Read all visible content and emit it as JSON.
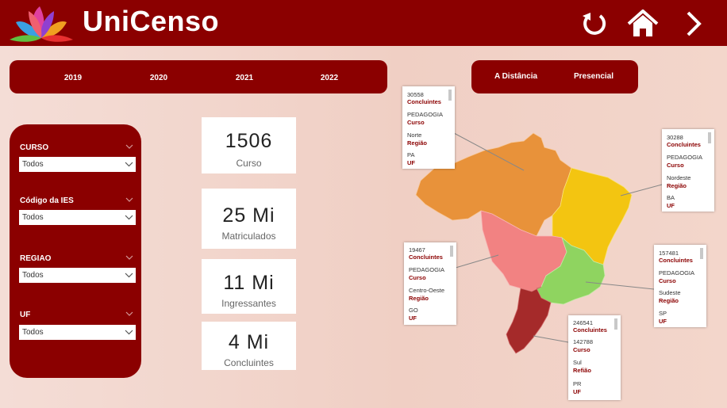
{
  "header": {
    "title": "UniCenso",
    "icons": [
      "refresh-icon",
      "home-icon",
      "chevron-right-icon"
    ],
    "bg_color": "#8b0000"
  },
  "years": [
    "2019",
    "2020",
    "2021",
    "2022"
  ],
  "modes": [
    "A Distância",
    "Presencial"
  ],
  "filters": [
    {
      "label": "CURSO",
      "value": "Todos"
    },
    {
      "label": "Código da IES",
      "value": "Todos"
    },
    {
      "label": "REGIAO",
      "value": "Todos"
    },
    {
      "label": "UF",
      "value": "Todos"
    }
  ],
  "kpis": [
    {
      "value": "1506",
      "label": "Curso"
    },
    {
      "value": "25 Mi",
      "label": "Matriculados"
    },
    {
      "value": "11 Mi",
      "label": "Ingressantes"
    },
    {
      "value": "4 Mi",
      "label": "Concluintes"
    }
  ],
  "map_regions": {
    "norte": "#e8923a",
    "nordeste": "#f3c511",
    "centro_oeste": "#f28282",
    "sudeste": "#8fd460",
    "sul": "#a52a2a"
  },
  "tooltips": [
    {
      "rows": [
        "30558",
        "Concluintes",
        "PEDAGOGIA",
        "Curso",
        "Norte",
        "Região",
        "PA",
        "UF"
      ]
    },
    {
      "rows": [
        "30288",
        "Concluintes",
        "PEDAGOGIA",
        "Curso",
        "Nordeste",
        "Região",
        "BA",
        "UF"
      ]
    },
    {
      "rows": [
        "19467",
        "Concluintes",
        "PEDAGOGIA",
        "Curso",
        "Centro-Oeste",
        "Região",
        "GO",
        "UF"
      ]
    },
    {
      "rows": [
        "157481",
        "Concluintes",
        "PEDAGOGIA",
        "Curso",
        "Sudeste",
        "Região",
        "SP",
        "UF"
      ]
    },
    {
      "rows": [
        "246541",
        "Concluintes",
        "142788",
        "Curso",
        "Sul",
        "Refião",
        "PR",
        "UF"
      ]
    }
  ]
}
